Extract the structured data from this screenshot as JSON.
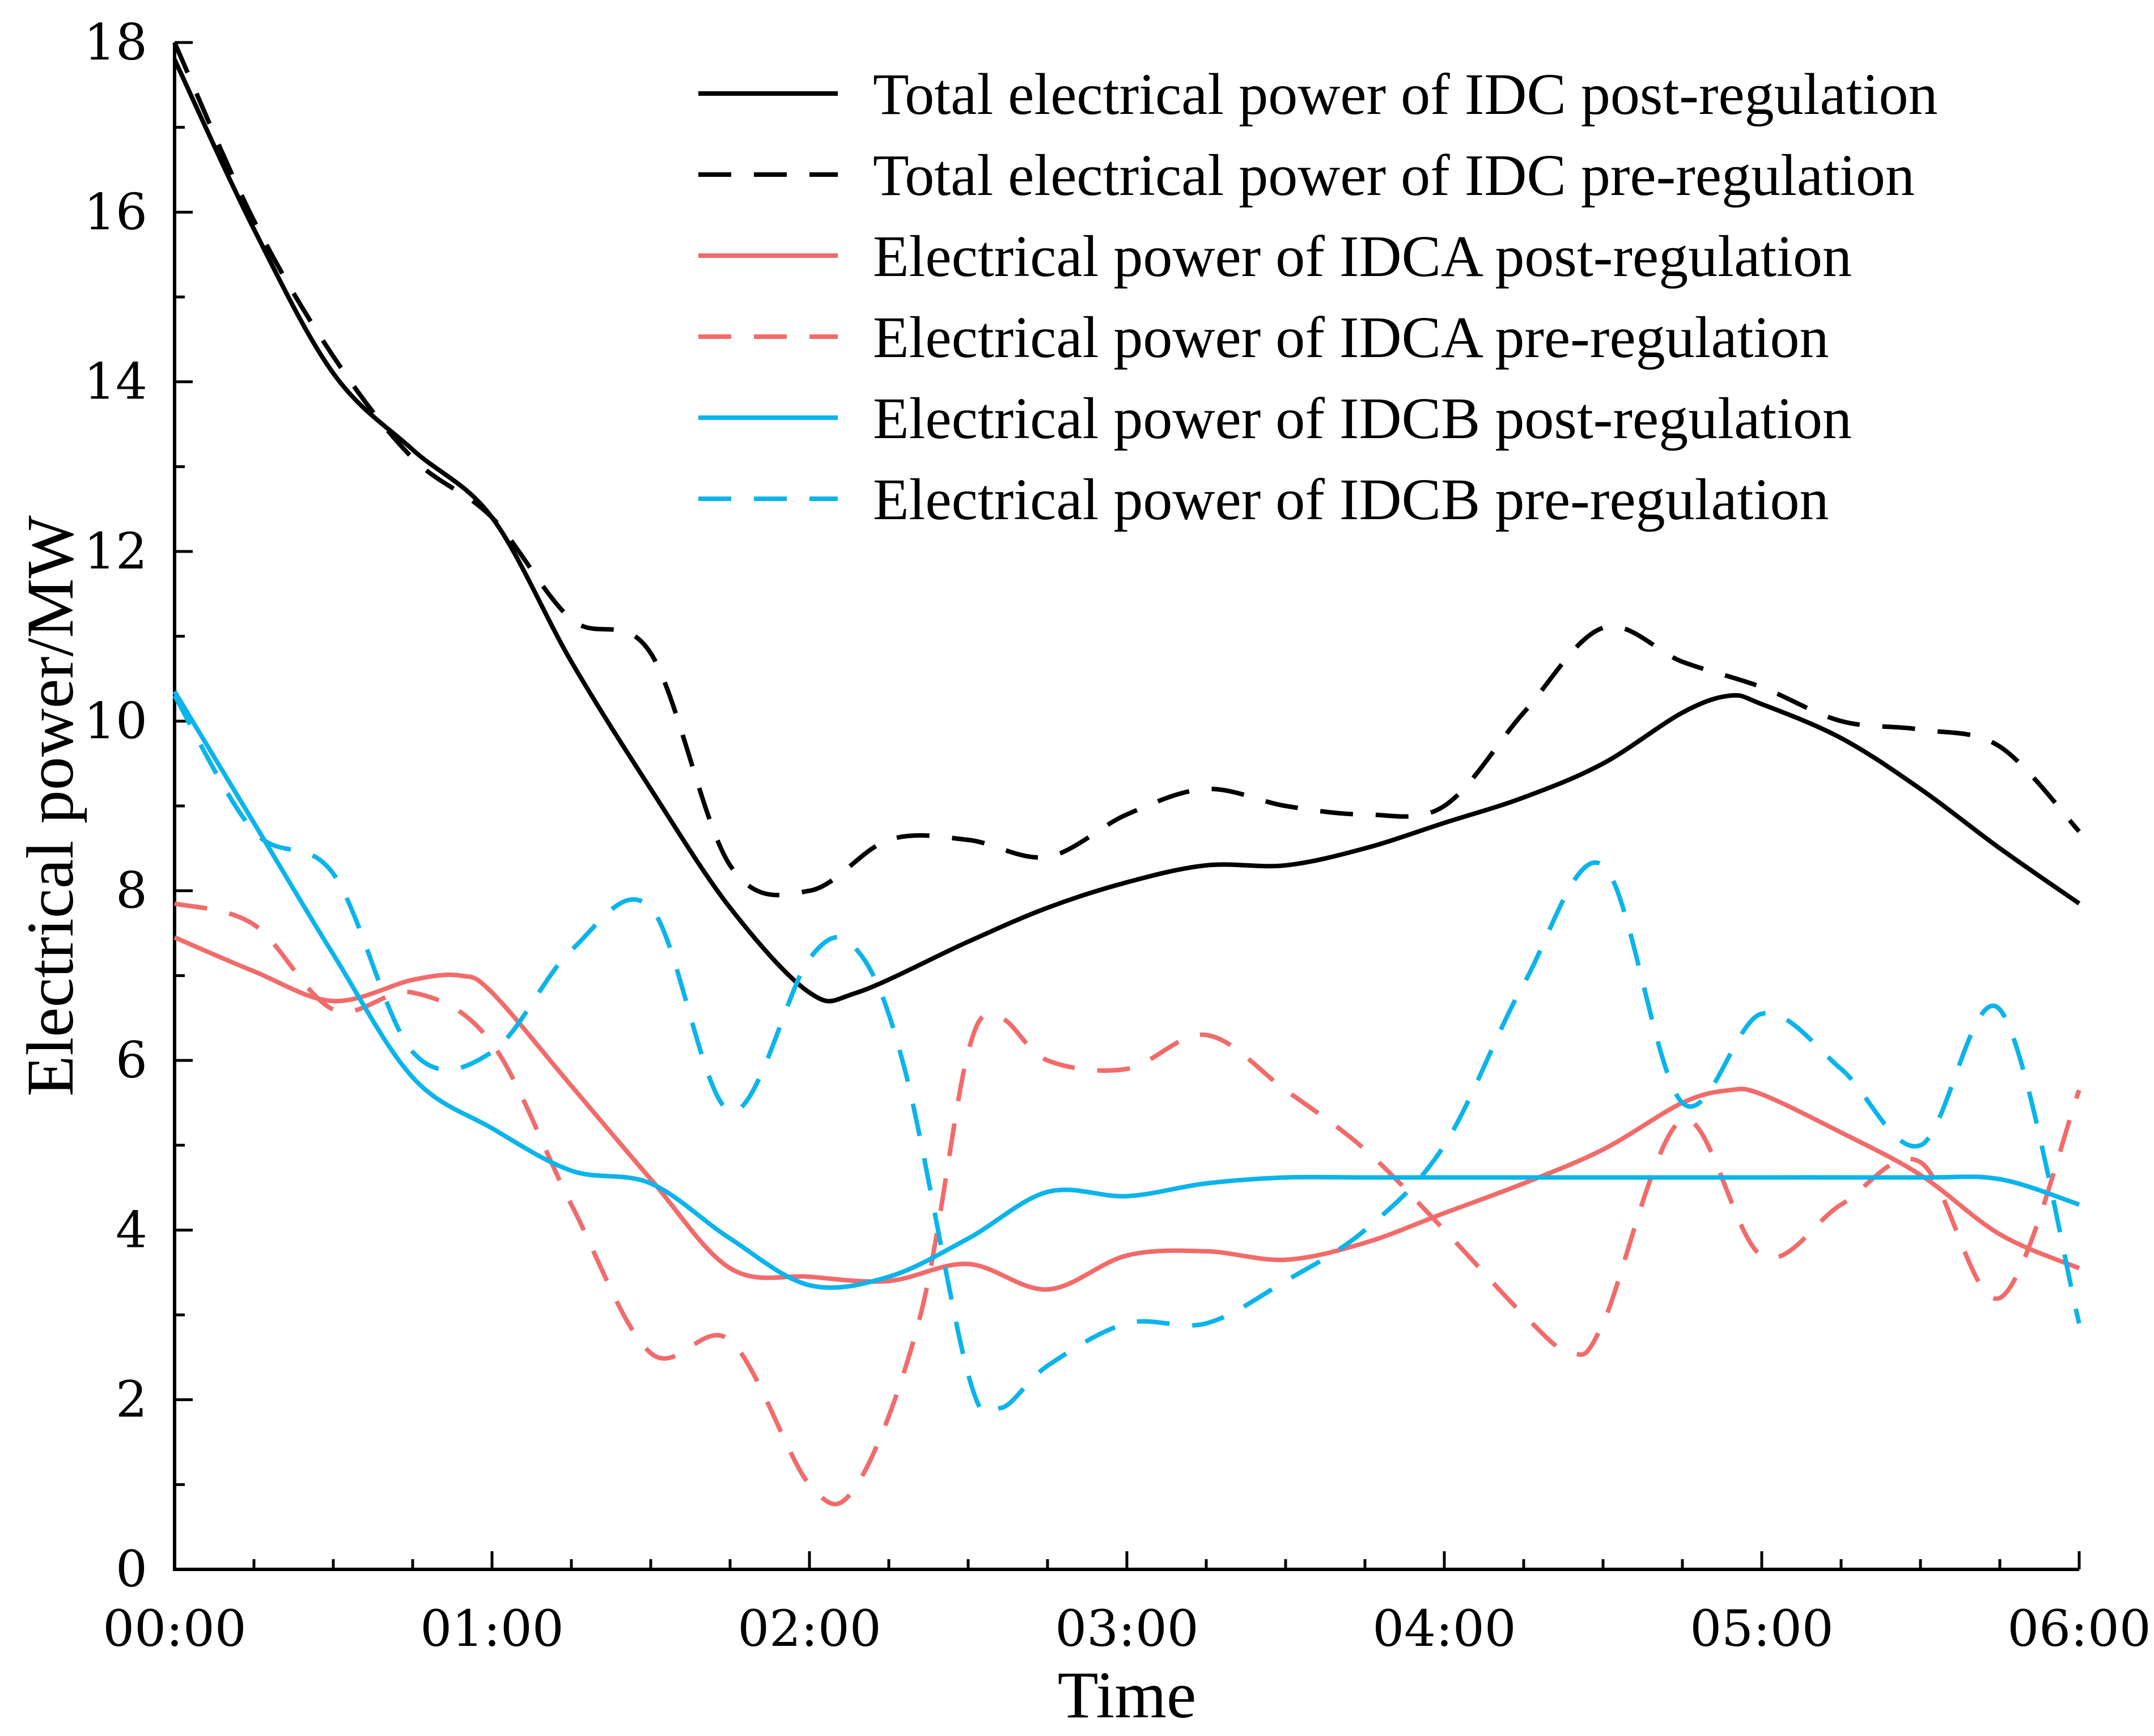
{
  "chart_data": {
    "type": "line",
    "title": "",
    "xlabel": "Time",
    "ylabel": "Electrical power/MW",
    "x_ticks": [
      "00:00",
      "01:00",
      "02:00",
      "03:00",
      "04:00",
      "05:00",
      "06:00"
    ],
    "xlim": [
      0,
      6
    ],
    "ylim": [
      0,
      18
    ],
    "y_ticks": [
      0,
      2,
      4,
      6,
      8,
      10,
      12,
      14,
      16,
      18
    ],
    "legend_position": "top-right",
    "series": [
      {
        "name": "Total electrical power of IDC post-regulation",
        "color": "#000000",
        "dash": "solid",
        "x": [
          0,
          0.25,
          0.5,
          0.75,
          1.0,
          1.25,
          1.5,
          1.75,
          2.0,
          2.15,
          2.5,
          2.75,
          3.0,
          3.25,
          3.5,
          3.75,
          4.0,
          4.25,
          4.5,
          4.75,
          4.9,
          5.0,
          5.25,
          5.5,
          5.75,
          6.0
        ],
        "values": [
          17.8,
          15.8,
          14.1,
          13.2,
          12.4,
          10.7,
          9.2,
          7.8,
          6.8,
          6.8,
          7.4,
          7.8,
          8.1,
          8.3,
          8.3,
          8.5,
          8.8,
          9.1,
          9.5,
          10.1,
          10.3,
          10.2,
          9.8,
          9.2,
          8.5,
          7.85
        ]
      },
      {
        "name": "Total electrical power of IDC pre-regulation",
        "color": "#000000",
        "dash": "dashed",
        "x": [
          0,
          0.25,
          0.5,
          0.75,
          1.0,
          1.25,
          1.5,
          1.75,
          2.0,
          2.25,
          2.5,
          2.75,
          3.0,
          3.25,
          3.5,
          3.75,
          4.0,
          4.25,
          4.5,
          4.75,
          5.0,
          5.25,
          5.5,
          5.75,
          6.0
        ],
        "values": [
          18.0,
          15.9,
          14.3,
          13.1,
          12.4,
          11.2,
          10.8,
          8.3,
          8.0,
          8.6,
          8.6,
          8.4,
          8.9,
          9.2,
          9.0,
          8.9,
          9.0,
          10.1,
          11.1,
          10.7,
          10.4,
          10.0,
          9.9,
          9.7,
          8.7
        ]
      },
      {
        "name": "Electrical power of IDCA post-regulation",
        "color": "#F26B6B",
        "dash": "solid",
        "x": [
          0,
          0.25,
          0.5,
          0.75,
          0.9,
          1.0,
          1.25,
          1.5,
          1.75,
          2.0,
          2.25,
          2.5,
          2.75,
          3.0,
          3.25,
          3.5,
          3.75,
          4.0,
          4.25,
          4.5,
          4.75,
          4.9,
          5.0,
          5.25,
          5.5,
          5.75,
          6.0
        ],
        "values": [
          7.45,
          7.05,
          6.7,
          6.95,
          7.0,
          6.8,
          5.7,
          4.6,
          3.55,
          3.45,
          3.4,
          3.6,
          3.3,
          3.7,
          3.75,
          3.65,
          3.85,
          4.2,
          4.55,
          4.95,
          5.5,
          5.65,
          5.6,
          5.15,
          4.65,
          3.95,
          3.55
        ]
      },
      {
        "name": "Electrical power of IDCA pre-regulation",
        "color": "#F26B6B",
        "dash": "dashed",
        "x": [
          0,
          0.25,
          0.5,
          0.75,
          1.0,
          1.25,
          1.5,
          1.75,
          2.0,
          2.15,
          2.35,
          2.5,
          2.6,
          2.75,
          3.0,
          3.25,
          3.5,
          3.75,
          4.0,
          4.25,
          4.4,
          4.5,
          4.75,
          5.0,
          5.25,
          5.5,
          5.75,
          6.0
        ],
        "values": [
          7.85,
          7.6,
          6.6,
          6.8,
          6.2,
          4.3,
          2.55,
          2.7,
          1.0,
          1.0,
          3.0,
          6.1,
          6.5,
          6.0,
          5.9,
          6.3,
          5.65,
          4.95,
          4.0,
          3.0,
          2.55,
          2.9,
          5.3,
          3.7,
          4.3,
          4.8,
          3.2,
          5.65
        ]
      },
      {
        "name": "Electrical power of IDCB post-regulation",
        "color": "#0BB4EB",
        "dash": "solid",
        "x": [
          0,
          0.25,
          0.5,
          0.75,
          1.0,
          1.25,
          1.5,
          1.75,
          2.0,
          2.25,
          2.5,
          2.75,
          3.0,
          3.25,
          3.5,
          3.75,
          4.0,
          4.5,
          5.0,
          5.5,
          5.75,
          6.0
        ],
        "values": [
          10.35,
          8.8,
          7.25,
          5.8,
          5.2,
          4.7,
          4.55,
          3.9,
          3.35,
          3.45,
          3.9,
          4.45,
          4.4,
          4.55,
          4.62,
          4.62,
          4.62,
          4.62,
          4.62,
          4.62,
          4.6,
          4.3
        ]
      },
      {
        "name": "Electrical power of IDCB pre-regulation",
        "color": "#0BB4EB",
        "dash": "dashed",
        "x": [
          0,
          0.25,
          0.5,
          0.75,
          1.0,
          1.25,
          1.5,
          1.75,
          2.0,
          2.15,
          2.3,
          2.5,
          2.6,
          2.75,
          3.0,
          3.25,
          3.5,
          3.75,
          4.0,
          4.25,
          4.5,
          4.75,
          5.0,
          5.25,
          5.5,
          5.75,
          6.0
        ],
        "values": [
          10.3,
          8.7,
          8.2,
          6.1,
          6.1,
          7.3,
          7.8,
          5.4,
          7.2,
          7.3,
          5.9,
          2.3,
          1.9,
          2.4,
          2.9,
          2.9,
          3.4,
          4.0,
          5.0,
          6.9,
          8.3,
          5.5,
          6.55,
          5.9,
          5.0,
          6.6,
          2.9
        ]
      }
    ]
  }
}
